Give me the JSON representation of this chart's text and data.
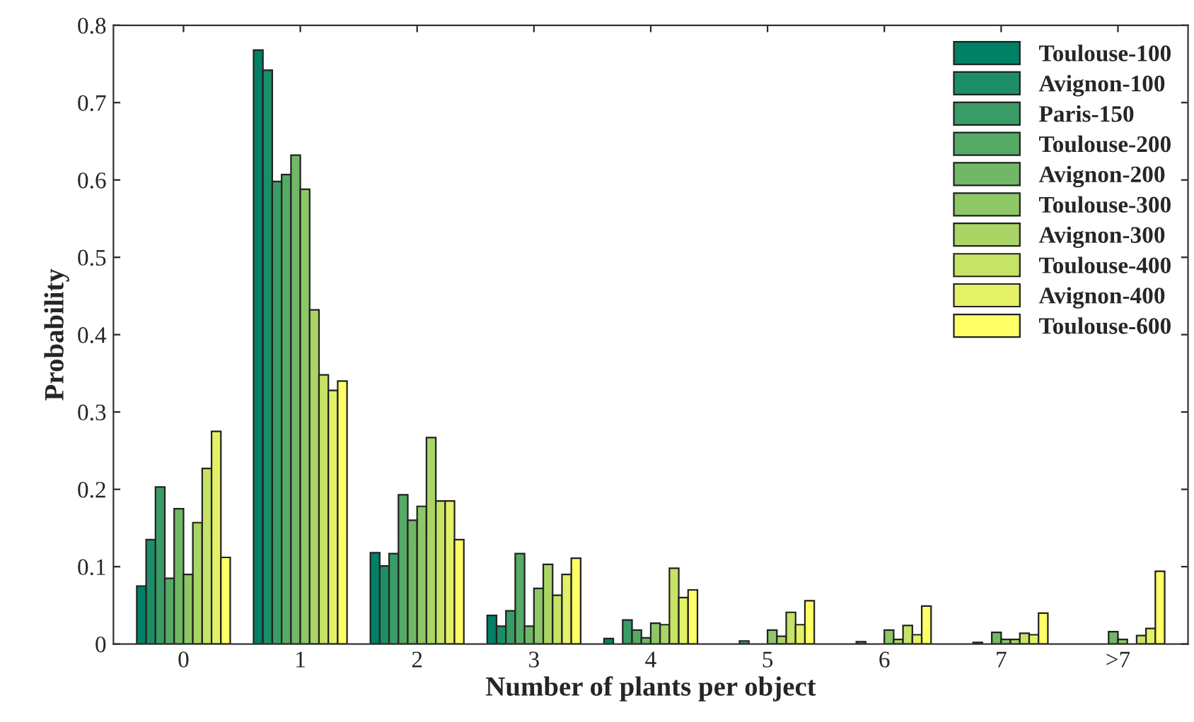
{
  "chart_data": {
    "type": "bar",
    "xlabel": "Number of plants per object",
    "ylabel": "Probability",
    "categories": [
      "0",
      "1",
      "2",
      "3",
      "4",
      "5",
      "6",
      "7",
      ">7"
    ],
    "ylim": [
      0,
      0.8
    ],
    "yticks": [
      0,
      0.1,
      0.2,
      0.3,
      0.4,
      0.5,
      0.6,
      0.7,
      0.8
    ],
    "grid": false,
    "legend": "top right",
    "series": [
      {
        "name": "Toulouse-100",
        "color": "#008066",
        "values": [
          0.075,
          0.768,
          0.118,
          0.037,
          0.007,
          null,
          null,
          null,
          null
        ]
      },
      {
        "name": "Avignon-100",
        "color": "#1c8e66",
        "values": [
          0.135,
          0.742,
          0.101,
          0.023,
          null,
          null,
          null,
          null,
          null
        ]
      },
      {
        "name": "Paris-150",
        "color": "#399c66",
        "values": [
          0.203,
          0.598,
          0.117,
          0.043,
          0.031,
          0.004,
          0.003,
          0.002,
          null
        ]
      },
      {
        "name": "Toulouse-200",
        "color": "#55aa66",
        "values": [
          0.085,
          0.607,
          0.193,
          0.117,
          0.018,
          null,
          null,
          null,
          null
        ]
      },
      {
        "name": "Avignon-200",
        "color": "#71b866",
        "values": [
          0.175,
          0.632,
          0.16,
          0.023,
          0.008,
          null,
          null,
          0.015,
          0.016
        ]
      },
      {
        "name": "Toulouse-300",
        "color": "#8ec766",
        "values": [
          0.09,
          0.588,
          0.178,
          0.072,
          0.027,
          0.018,
          0.018,
          0.006,
          0.006
        ]
      },
      {
        "name": "Avignon-300",
        "color": "#aad566",
        "values": [
          0.157,
          0.432,
          0.267,
          0.103,
          0.025,
          0.01,
          0.006,
          0.006,
          null
        ]
      },
      {
        "name": "Toulouse-400",
        "color": "#c6e366",
        "values": [
          0.227,
          0.348,
          0.185,
          0.063,
          0.098,
          0.041,
          0.024,
          0.014,
          0.011
        ]
      },
      {
        "name": "Avignon-400",
        "color": "#e3f166",
        "values": [
          0.275,
          0.328,
          0.185,
          0.09,
          0.06,
          0.025,
          0.012,
          0.012,
          0.02
        ]
      },
      {
        "name": "Toulouse-600",
        "color": "#ffff66",
        "values": [
          0.112,
          0.34,
          0.135,
          0.111,
          0.07,
          0.056,
          0.049,
          0.04,
          0.094
        ]
      }
    ]
  }
}
